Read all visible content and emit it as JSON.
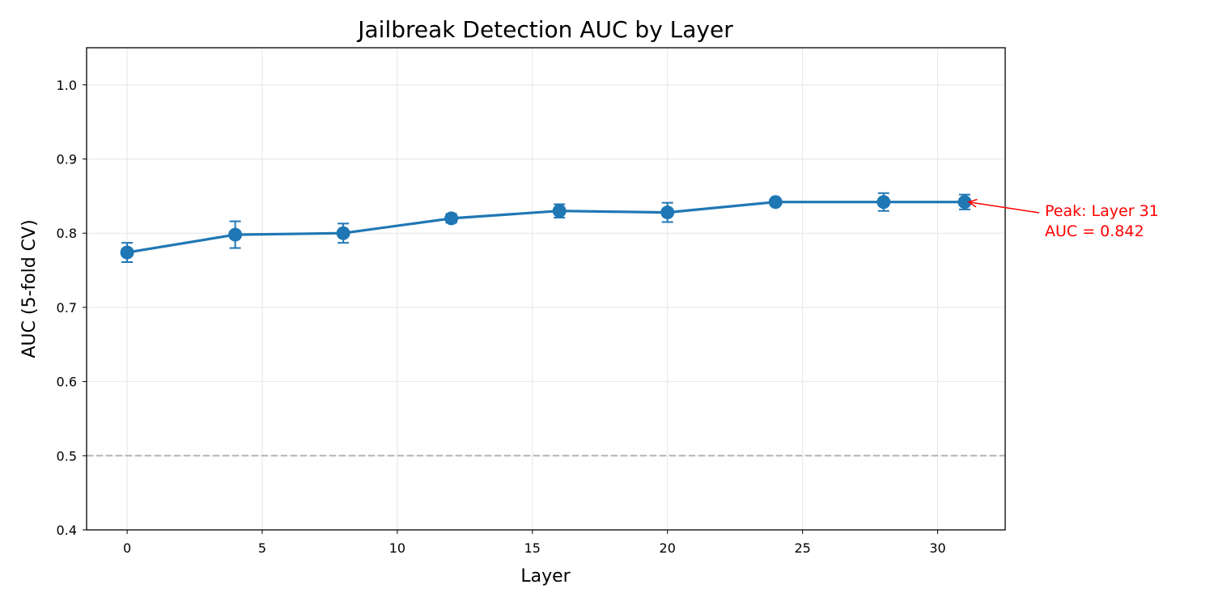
{
  "chart_data": {
    "type": "line",
    "title": "Jailbreak Detection AUC by Layer",
    "xlabel": "Layer",
    "ylabel": "AUC (5-fold CV)",
    "xlim": [
      -1.5,
      32.5
    ],
    "ylim": [
      0.4,
      1.05
    ],
    "xticks": [
      0,
      5,
      10,
      15,
      20,
      25,
      30
    ],
    "yticks": [
      0.4,
      0.5,
      0.6,
      0.7,
      0.8,
      0.9,
      1.0
    ],
    "ytick_labels": [
      "0.4",
      "0.5",
      "0.6",
      "0.7",
      "0.8",
      "0.9",
      "1.0"
    ],
    "grid": true,
    "series": [
      {
        "color": "#1f77b4",
        "x": [
          0,
          4,
          8,
          12,
          16,
          20,
          24,
          28,
          31
        ],
        "y": [
          0.774,
          0.798,
          0.8,
          0.82,
          0.83,
          0.828,
          0.842,
          0.842,
          0.842
        ],
        "yerr": [
          0.013,
          0.018,
          0.013,
          0.006,
          0.009,
          0.013,
          0.004,
          0.012,
          0.01
        ]
      }
    ],
    "reference_line": {
      "y": 0.5,
      "color": "#b3b3b3",
      "style": "dashed"
    },
    "annotation": {
      "lines": [
        "Peak: Layer 31",
        "AUC = 0.842"
      ],
      "target_x": 31,
      "target_y": 0.842,
      "color": "#ff0000"
    }
  }
}
